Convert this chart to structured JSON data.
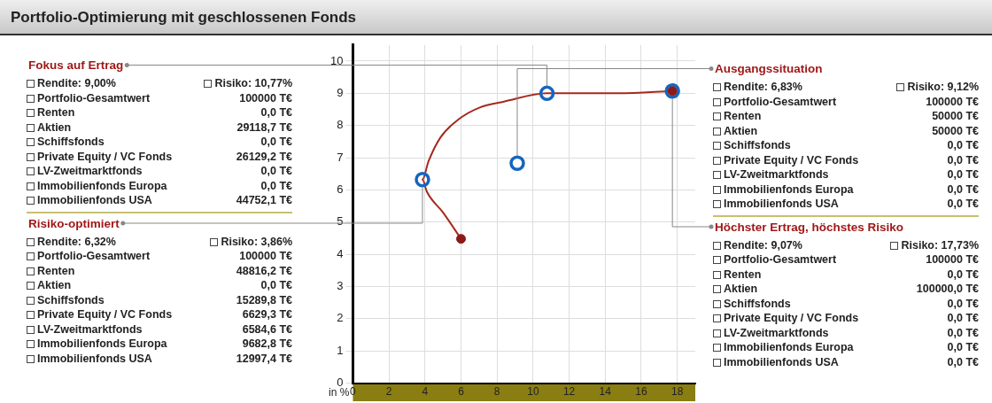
{
  "chart_data": {
    "type": "line",
    "title": "Portfolio-Optimierung mit geschlossenen Fonds",
    "ylabel": "in %",
    "xlim": [
      0,
      19
    ],
    "xticks": [
      0,
      2,
      4,
      6,
      8,
      10,
      12,
      14,
      16,
      18
    ],
    "ylim": [
      0,
      10.5
    ],
    "yticks": [
      0,
      1,
      2,
      3,
      4,
      5,
      6,
      7,
      8,
      9,
      10
    ],
    "grid": true,
    "legend": false,
    "series": [
      {
        "color": "#a52a1e",
        "marker": "none",
        "x": [
          6.0,
          5.0,
          4.1,
          3.86,
          4.19,
          4.86,
          5.86,
          7.04,
          8.38,
          10.77,
          14.74,
          17.73
        ],
        "values": [
          4.48,
          5.3,
          5.95,
          6.32,
          6.88,
          7.63,
          8.19,
          8.56,
          8.74,
          9.0,
          9.0,
          9.07
        ]
      },
      {
        "type": "scatter",
        "color": "#1565c0",
        "marker": "circle",
        "x": [
          3.86,
          9.12,
          10.77,
          17.73
        ],
        "values": [
          6.32,
          6.83,
          9.0,
          9.07
        ]
      },
      {
        "type": "scatter",
        "color": "#8b1a1a",
        "marker": "circle",
        "x": [
          6.0,
          17.73
        ],
        "values": [
          4.48,
          9.07
        ]
      }
    ],
    "annotations": [
      {
        "text": "Fokus auf Ertrag",
        "x": 10.77,
        "y": 9.0
      },
      "Rendite: 9,00%",
      "Risiko: 10,77%",
      "Portfolio-Gesamtwert",
      "100000 T€",
      "Renten",
      "0,0 T€",
      "Aktien",
      "29118,7 T€",
      "Schiffsfonds",
      "0,0 T€",
      "Private Equity / VC Fonds",
      "26129,2 T€",
      "LV-Zweitmarktfonds",
      "0,0 T€",
      "Immobilienfonds Europa",
      "0,0 T€",
      "Immobilienfonds USA",
      "44752,1 T€",
      {
        "text": "Risiko-optimiert",
        "x": 3.86,
        "y": 6.32
      },
      "Rendite: 6,32%",
      "Risiko: 3,86%",
      "Portfolio-Gesamtwert",
      "100000 T€",
      "Renten",
      "48816,2 T€",
      "Aktien",
      "0,0 T€",
      "Schiffsfonds",
      "15289,8 T€",
      "Private Equity / VC Fonds",
      "6629,3 T€",
      "LV-Zweitmarktfonds",
      "6584,6 T€",
      "Immobilienfonds Europa",
      "9682,8 T€",
      "Immobilienfonds USA",
      "12997,4 T€",
      {
        "text": "Ausgangssituation",
        "x": 9.12,
        "y": 6.83
      },
      "Rendite: 6,83%",
      "Risiko: 9,12%",
      "Portfolio-Gesamtwert",
      "100000 T€",
      "Renten",
      "50000 T€",
      "Aktien",
      "50000 T€",
      "Schiffsfonds",
      "0,0 T€",
      "Private Equity / VC Fonds",
      "0,0 T€",
      "LV-Zweitmarktfonds",
      "0,0 T€",
      "Immobilienfonds Europa",
      "0,0 T€",
      "Immobilienfonds USA",
      "0,0 T€",
      {
        "text": "Höchster Ertrag, höchstes Risiko",
        "x": 17.73,
        "y": 9.07
      },
      "Rendite: 9,07%",
      "Risiko: 17,73%",
      "Portfolio-Gesamtwert",
      "100000 T€",
      "Renten",
      "0,0 T€",
      "Aktien",
      "100000,0 T€",
      "Schiffsfonds",
      "0,0 T€",
      "Private Equity / VC Fonds",
      "0,0 T€",
      "LV-Zweitmarktfonds",
      "0,0 T€",
      "Immobilienfonds Europa",
      "0,0 T€",
      "Immobilienfonds USA",
      "0,0 T€"
    ]
  }
}
